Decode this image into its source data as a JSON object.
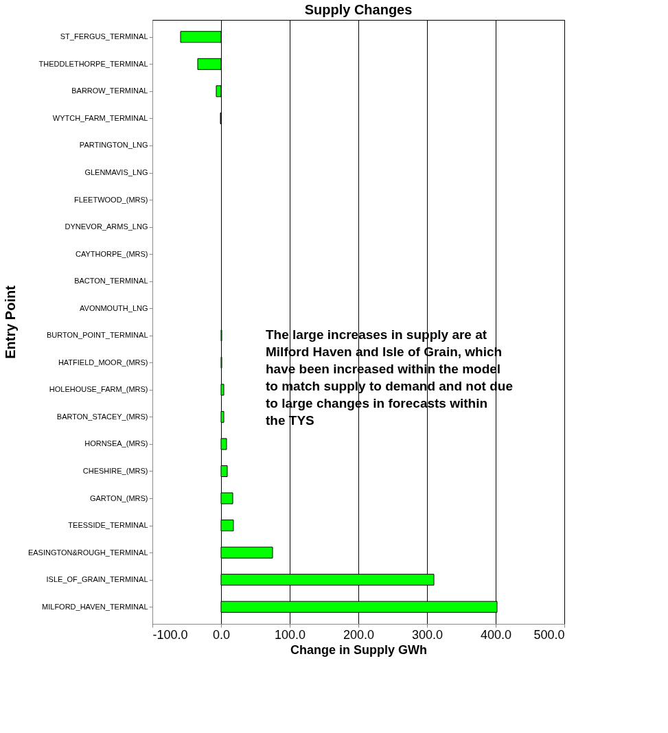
{
  "chart_data": {
    "type": "bar",
    "orientation": "horizontal",
    "title": "Supply Changes",
    "xlabel": "Change in Supply GWh",
    "ylabel": "Entry Point",
    "categories": [
      "ST_FERGUS_TERMINAL",
      "THEDDLETHORPE_TERMINAL",
      "BARROW_TERMINAL",
      "WYTCH_FARM_TERMINAL",
      "PARTINGTON_LNG",
      "GLENMAVIS_LNG",
      "FLEETWOOD_(MRS)",
      "DYNEVOR_ARMS_LNG",
      "CAYTHORPE_(MRS)",
      "BACTON_TERMINAL",
      "AVONMOUTH_LNG",
      "BURTON_POINT_TERMINAL",
      "HATFIELD_MOOR_(MRS)",
      "HOLEHOUSE_FARM_(MRS)",
      "BARTON_STACEY_(MRS)",
      "HORNSEA_(MRS)",
      "CHESHIRE_(MRS)",
      "GARTON_(MRS)",
      "TEESSIDE_TERMINAL",
      "EASINGTON&ROUGH_TERMINAL",
      "ISLE_OF_GRAIN_TERMINAL",
      "MILFORD_HAVEN_TERMINAL"
    ],
    "values": [
      -59,
      -34,
      -7,
      -1,
      0,
      0,
      0,
      0,
      0,
      0,
      0,
      1,
      1,
      4,
      4,
      8,
      9,
      17,
      18,
      75,
      310,
      402
    ],
    "color": "#00ff00",
    "xlim": [
      -100,
      500
    ],
    "xticks": [
      {
        "value": -100,
        "label": "-100.0"
      },
      {
        "value": 0,
        "label": "0.0"
      },
      {
        "value": 100,
        "label": "100.0"
      },
      {
        "value": 200,
        "label": "200.0"
      },
      {
        "value": 300,
        "label": "300.0"
      },
      {
        "value": 400,
        "label": "400.0"
      },
      {
        "value": 500,
        "label": "500.0"
      }
    ],
    "grid": "x",
    "annotations": [
      "The large increases in supply are at Milford Haven and Isle of Grain, which have been increased within the model to match supply to demand and not due to large changes in forecasts within the TYS"
    ]
  }
}
